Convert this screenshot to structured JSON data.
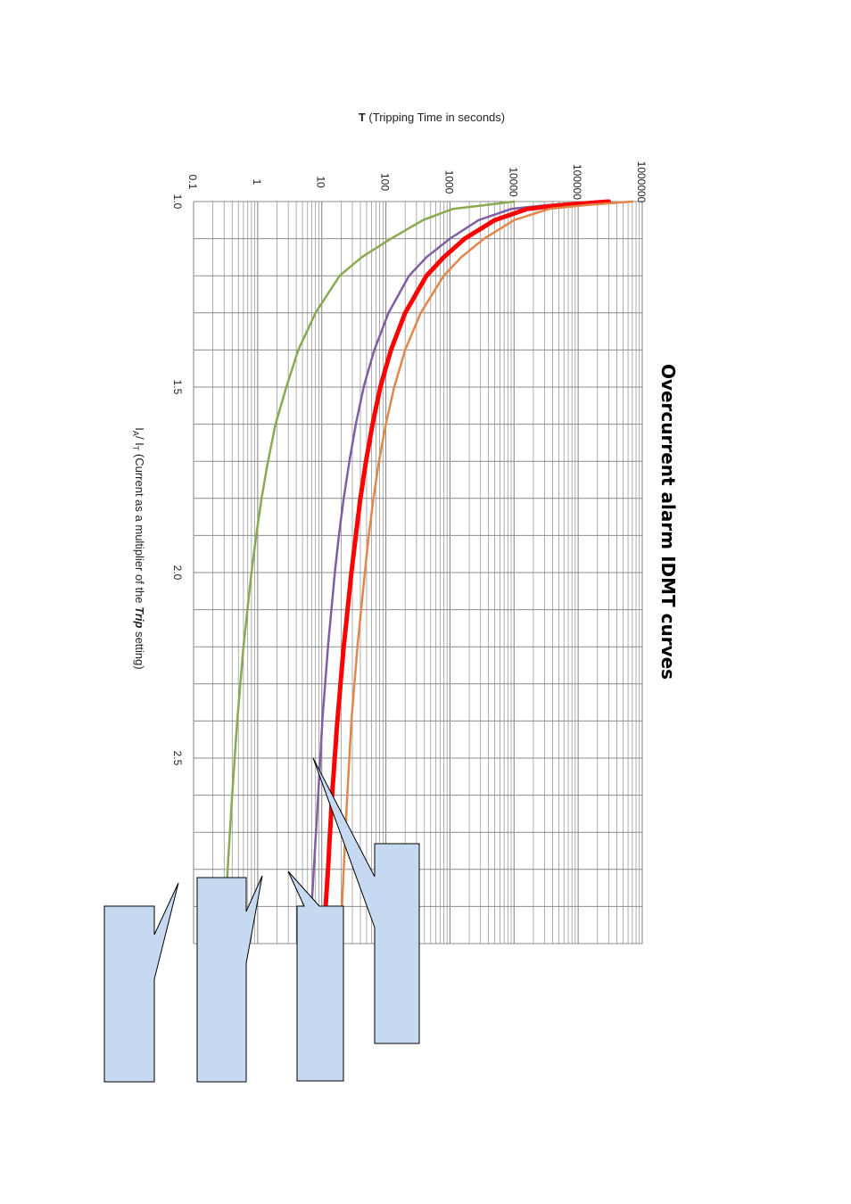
{
  "chart_data": {
    "type": "line",
    "orientation": "rotated 90deg clockwise (x axis runs top-to-bottom, y axis runs left-to-right)",
    "title": "Overcurrent alarm IDMT curves",
    "xlabel": {
      "pre": "I",
      "sub1": "A",
      "mid": "/ I",
      "sub2": "T",
      "post1": " (Current as a multiplier of the ",
      "emph": "Trip",
      "post2": " setting)"
    },
    "ylabel": {
      "bold": "T",
      "rest": "  (Tripping Time in seconds)"
    },
    "xlim": [
      1.0,
      3.0
    ],
    "ylim": [
      0.1,
      1000000
    ],
    "yscale": "log",
    "grid": true,
    "x_ticks": [
      "1.0",
      "1.5",
      "2.0",
      "2.5"
    ],
    "x_tick_values": [
      1.0,
      1.5,
      2.0,
      2.5
    ],
    "y_ticks": [
      "0.1",
      "1",
      "10",
      "100",
      "1000",
      "10000",
      "100000",
      "1000000"
    ],
    "y_tick_values": [
      0.1,
      1,
      10,
      100,
      1000,
      10000,
      100000,
      1000000
    ],
    "series": [
      {
        "color": "#8aaa52",
        "width": 2.5,
        "x": [
          1.0,
          1.02,
          1.05,
          1.1,
          1.15,
          1.2,
          1.3,
          1.4,
          1.5,
          1.6,
          1.7,
          1.8,
          1.9,
          2.0,
          2.2,
          2.4,
          2.6,
          2.8,
          2.9
        ],
        "values": [
          10000,
          1100,
          380,
          120,
          42,
          19,
          8,
          4.3,
          2.8,
          1.9,
          1.45,
          1.15,
          0.95,
          0.8,
          0.6,
          0.48,
          0.4,
          0.34,
          0.32
        ]
      },
      {
        "color": "#7e5fa3",
        "width": 2.5,
        "x": [
          1.0,
          1.01,
          1.02,
          1.05,
          1.1,
          1.15,
          1.2,
          1.3,
          1.4,
          1.5,
          1.6,
          1.7,
          1.8,
          1.9,
          2.0,
          2.2,
          2.4,
          2.5,
          2.6,
          2.8,
          2.93
        ],
        "values": [
          200000,
          30000,
          9000,
          2800,
          1000,
          430,
          230,
          110,
          66,
          45,
          34,
          27,
          22,
          18.5,
          16,
          12.5,
          10.2,
          9.5,
          8.8,
          7.5,
          6.8
        ]
      },
      {
        "color": "#ff0000",
        "width": 5,
        "x": [
          1.0,
          1.01,
          1.02,
          1.05,
          1.1,
          1.15,
          1.2,
          1.3,
          1.4,
          1.5,
          1.6,
          1.7,
          1.8,
          1.9,
          2.0,
          2.2,
          2.4,
          2.6,
          2.8,
          2.95
        ],
        "values": [
          300000,
          50000,
          16000,
          5000,
          1700,
          800,
          430,
          200,
          120,
          82,
          62,
          49,
          40,
          34,
          29,
          22,
          17.5,
          14.5,
          12.5,
          11
        ]
      },
      {
        "color": "#e2874a",
        "width": 2.5,
        "x": [
          1.0,
          1.01,
          1.02,
          1.05,
          1.1,
          1.15,
          1.2,
          1.3,
          1.4,
          1.5,
          1.6,
          1.7,
          1.8,
          1.9,
          2.0,
          2.2,
          2.4,
          2.6,
          2.8,
          2.95
        ],
        "values": [
          700000,
          120000,
          35000,
          10000,
          3400,
          1500,
          800,
          350,
          200,
          135,
          100,
          78,
          64,
          54,
          47,
          36,
          29,
          25,
          22,
          20
        ]
      }
    ]
  },
  "callouts": [
    "",
    "",
    "",
    ""
  ],
  "colors": {
    "grid": "#8c8c8c",
    "callout_fill": "#c6d9f0",
    "callout_stroke": "#000000"
  }
}
